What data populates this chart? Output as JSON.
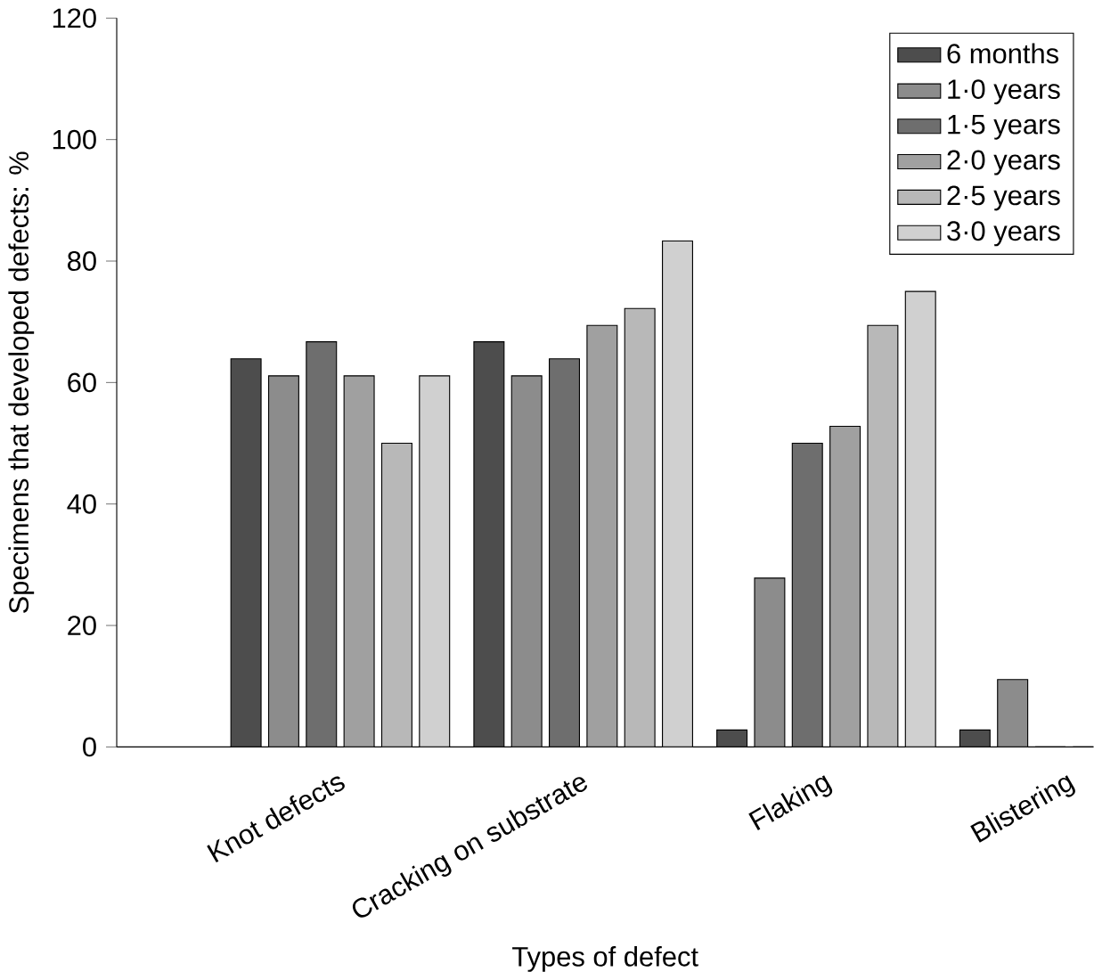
{
  "chart_data": {
    "type": "bar",
    "xlabel": "Types of defect",
    "ylabel": "Specimens that developed defects: %",
    "categories": [
      "Knot defects",
      "Cracking on substrate",
      "Flaking",
      "Blistering"
    ],
    "series": [
      {
        "name": "6 months",
        "color": "#4d4d4d",
        "values": [
          63.9,
          66.7,
          2.8,
          2.8
        ]
      },
      {
        "name": "1·0 years",
        "color": "#8c8c8c",
        "values": [
          61.1,
          61.1,
          27.8,
          11.1
        ]
      },
      {
        "name": "1·5 years",
        "color": "#6e6e6e",
        "values": [
          66.7,
          63.9,
          50.0,
          0
        ]
      },
      {
        "name": "2·0 years",
        "color": "#a0a0a0",
        "values": [
          61.1,
          69.4,
          52.8,
          0
        ]
      },
      {
        "name": "2·5 years",
        "color": "#b8b8b8",
        "values": [
          50.0,
          72.2,
          69.4,
          0
        ]
      },
      {
        "name": "3·0 years",
        "color": "#d0d0d0",
        "values": [
          61.1,
          83.3,
          75.0,
          0
        ]
      }
    ],
    "ylim": [
      0,
      120
    ],
    "yticks": [
      0,
      20,
      40,
      60,
      80,
      100,
      120
    ],
    "legend": "top right",
    "grid": false
  }
}
